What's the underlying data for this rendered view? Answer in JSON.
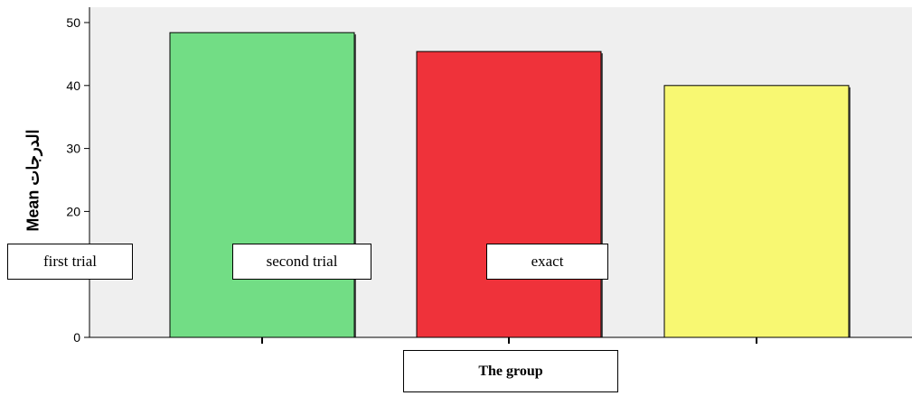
{
  "chart_data": {
    "type": "bar",
    "categories": [
      "first trial",
      "second trial",
      "exact"
    ],
    "values": [
      48.4,
      45.4,
      40.0
    ],
    "colors": [
      "#72dd85",
      "#ef323a",
      "#f8f872"
    ],
    "plot_background": "#efefef",
    "ylabel": "Mean الدرجات",
    "xlabel": "The group",
    "ylim": [
      0,
      52
    ],
    "yticks": [
      0,
      10,
      20,
      30,
      40,
      50
    ],
    "ytick_labels": [
      "0",
      "",
      "20",
      "30",
      "40",
      "50"
    ],
    "grid": false,
    "category_labels_shown": [
      "first trial",
      "second trial",
      "exact"
    ]
  }
}
